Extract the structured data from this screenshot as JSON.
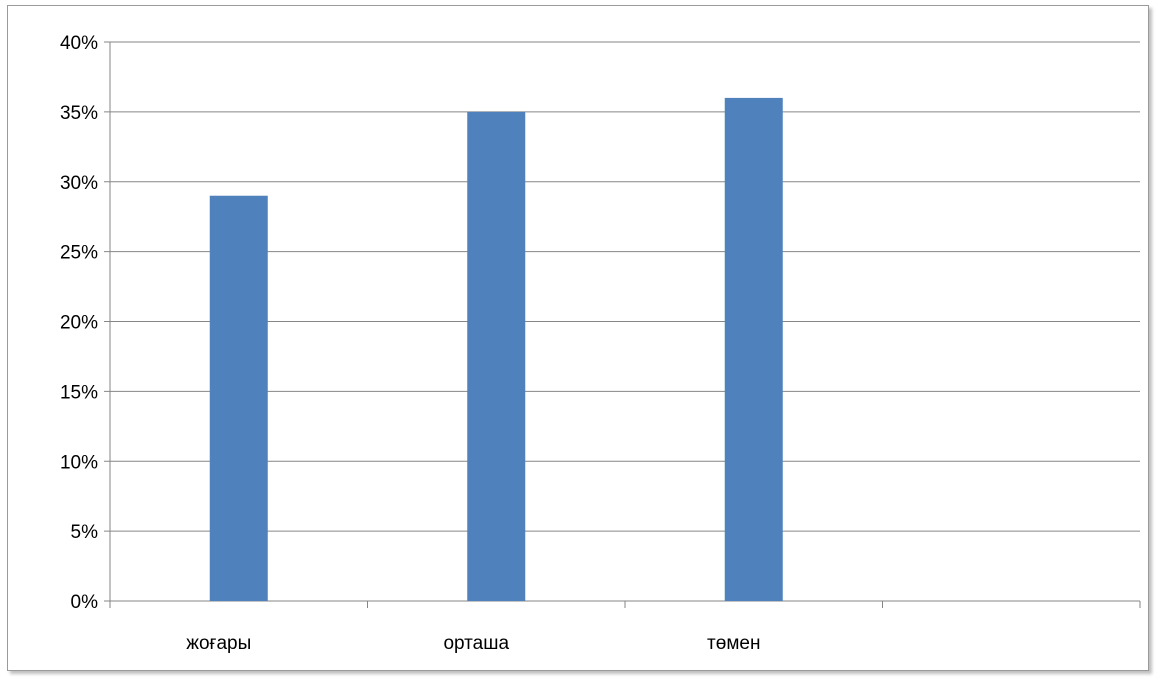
{
  "chart_data": {
    "type": "bar",
    "categories": [
      "жоғары",
      "орташа",
      "төмен",
      ""
    ],
    "values": [
      0.29,
      0.35,
      0.36,
      null
    ],
    "yticks": [
      "0%",
      "5%",
      "10%",
      "15%",
      "20%",
      "25%",
      "30%",
      "35%",
      "40%"
    ],
    "ylim": [
      0,
      0.4
    ],
    "ytick_step": 0.05,
    "grid": true,
    "legend": "none",
    "title": "",
    "xlabel": "",
    "ylabel": "",
    "colors": {
      "bar": "#4F81BD",
      "grid": "#868686",
      "axis": "#868686"
    }
  }
}
